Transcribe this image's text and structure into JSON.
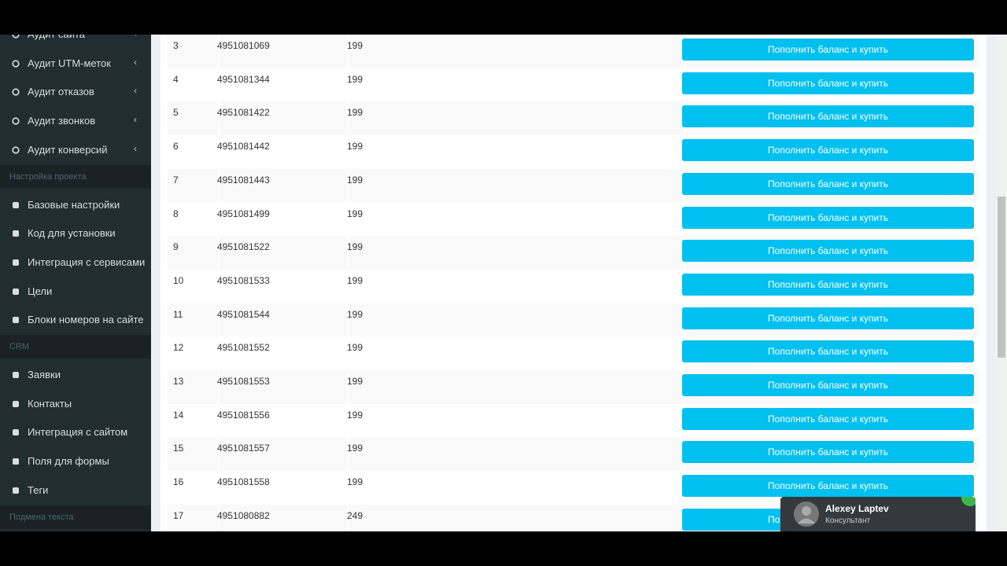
{
  "sidebar": {
    "groups": [
      {
        "items": [
          {
            "label": "Аудит сайта",
            "chevron": true
          },
          {
            "label": "Аудит UTM-меток",
            "chevron": true
          },
          {
            "label": "Аудит отказов",
            "chevron": true
          },
          {
            "label": "Аудит звонков",
            "chevron": true
          },
          {
            "label": "Аудит конверсий",
            "chevron": true
          }
        ]
      },
      {
        "header": "Настройка проекта",
        "items": [
          {
            "label": "Базовые настройки"
          },
          {
            "label": "Код для установки"
          },
          {
            "label": "Интеграция с сервисами"
          },
          {
            "label": "Цели"
          },
          {
            "label": "Блоки номеров на сайте"
          }
        ]
      },
      {
        "header": "CRM",
        "items": [
          {
            "label": "Заявки"
          },
          {
            "label": "Контакты"
          },
          {
            "label": "Интеграция с сайтом"
          },
          {
            "label": "Поля для формы"
          },
          {
            "label": "Теги"
          }
        ]
      },
      {
        "header": "Подмена текста",
        "items": []
      }
    ]
  },
  "table": {
    "button_label": "Пополнить баланс и купить",
    "rows": [
      [
        "3",
        "4951081069",
        "199"
      ],
      [
        "4",
        "4951081344",
        "199"
      ],
      [
        "5",
        "4951081422",
        "199"
      ],
      [
        "6",
        "4951081442",
        "199"
      ],
      [
        "7",
        "4951081443",
        "199"
      ],
      [
        "8",
        "4951081499",
        "199"
      ],
      [
        "9",
        "4951081522",
        "199"
      ],
      [
        "10",
        "4951081533",
        "199"
      ],
      [
        "11",
        "4951081544",
        "199"
      ],
      [
        "12",
        "4951081552",
        "199"
      ],
      [
        "13",
        "4951081553",
        "199"
      ],
      [
        "14",
        "4951081556",
        "199"
      ],
      [
        "15",
        "4951081557",
        "199"
      ],
      [
        "16",
        "4951081558",
        "199"
      ],
      [
        "17",
        "4951080882",
        "249"
      ]
    ]
  },
  "chat": {
    "name": "Alexey Laptev",
    "role": "Консультант"
  }
}
